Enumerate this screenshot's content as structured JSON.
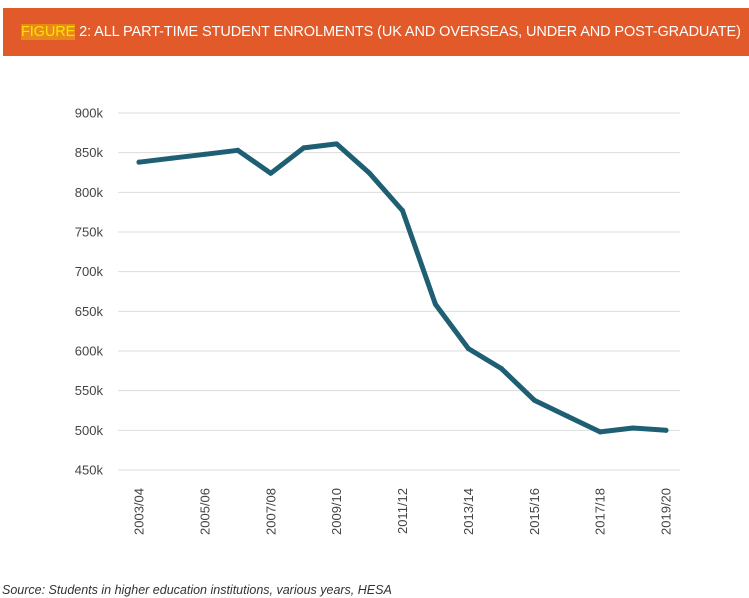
{
  "header": {
    "figure_label": "FIGURE",
    "title_rest": " 2: ALL PART-TIME STUDENT ENROLMENTS (UK AND OVERSEAS, UNDER AND POST-GRADUATE)"
  },
  "source_note": "Source: Students in higher education institutions, various years, HESA",
  "colors": {
    "header_background": "#e25a2a",
    "highlight_text": "#ffe000",
    "line": "#1f5f73",
    "grid": "#dddddd"
  },
  "chart_data": {
    "type": "line",
    "title": "",
    "xlabel": "",
    "ylabel": "",
    "grid": true,
    "x": [
      "2003/04",
      "2004/05",
      "2005/06",
      "2006/07",
      "2007/08",
      "2008/09",
      "2009/10",
      "2010/11",
      "2011/12",
      "2012/13",
      "2013/14",
      "2014/15",
      "2015/16",
      "2016/17",
      "2017/18",
      "2018/19",
      "2019/20"
    ],
    "series": [
      {
        "values": [
          838000,
          843000,
          848000,
          853000,
          824000,
          856000,
          861000,
          824000,
          777000,
          659000,
          603000,
          578000,
          538000,
          518000,
          498000,
          503000,
          500000
        ]
      }
    ],
    "x_tick_labels": [
      "2003/04",
      "2005/06",
      "2007/08",
      "2009/10",
      "2011/12",
      "2013/14",
      "2015/16",
      "2017/18",
      "2019/20"
    ],
    "y_ticks": [
      450000,
      500000,
      550000,
      600000,
      650000,
      700000,
      750000,
      800000,
      850000,
      900000
    ],
    "y_tick_labels": [
      "450k",
      "500k",
      "550k",
      "600k",
      "650k",
      "700k",
      "750k",
      "800k",
      "850k",
      "900k"
    ],
    "ylim": [
      450000,
      900000
    ]
  }
}
